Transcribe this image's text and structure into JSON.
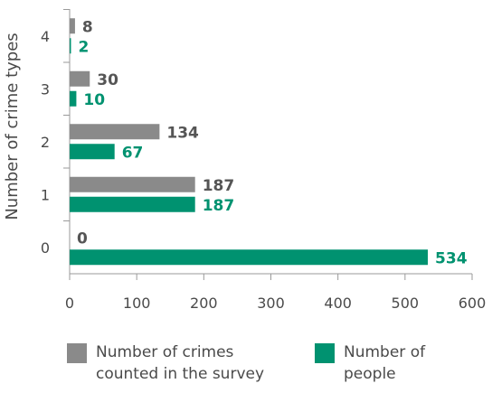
{
  "chart_data": {
    "type": "bar",
    "orientation": "horizontal",
    "ylabel": "Number of crime types",
    "xlabel": "",
    "categories": [
      "0",
      "1",
      "2",
      "3",
      "4"
    ],
    "xlim": [
      0,
      600
    ],
    "xticks": [
      0,
      100,
      200,
      300,
      400,
      500,
      600
    ],
    "grid": false,
    "legend_position": "bottom",
    "series": [
      {
        "name": "Number of crimes\ncounted in the survey",
        "color": "#8a8a8a",
        "values": [
          0,
          187,
          134,
          30,
          8
        ]
      },
      {
        "name": "Number of\npeople",
        "color": "#009270",
        "values": [
          534,
          187,
          67,
          10,
          2
        ]
      }
    ]
  }
}
